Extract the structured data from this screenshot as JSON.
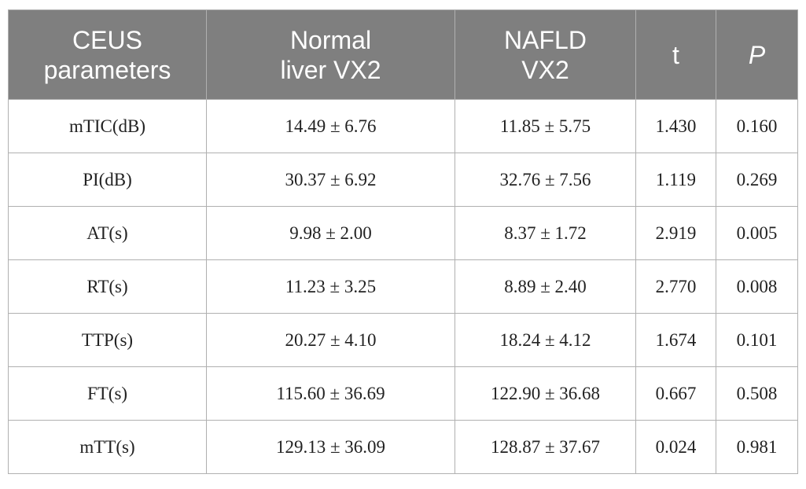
{
  "table": {
    "header": [
      [
        "CEUS",
        "parameters"
      ],
      [
        "Normal",
        "liver VX2"
      ],
      [
        "NAFLD",
        "VX2"
      ],
      [
        "t"
      ],
      [
        "P"
      ]
    ],
    "rows": [
      [
        "mTIC(dB)",
        "14.49 ± 6.76",
        "11.85 ± 5.75",
        "1.430",
        "0.160"
      ],
      [
        "PI(dB)",
        "30.37 ± 6.92",
        "32.76 ± 7.56",
        "1.119",
        "0.269"
      ],
      [
        "AT(s)",
        "9.98 ± 2.00",
        "8.37 ± 1.72",
        "2.919",
        "0.005"
      ],
      [
        "RT(s)",
        "11.23 ± 3.25",
        "8.89 ± 2.40",
        "2.770",
        "0.008"
      ],
      [
        "TTP(s)",
        "20.27 ± 4.10",
        "18.24 ± 4.12",
        "1.674",
        "0.101"
      ],
      [
        "FT(s)",
        "115.60 ± 36.69",
        "122.90 ± 36.68",
        "0.667",
        "0.508"
      ],
      [
        "mTT(s)",
        "129.13 ± 36.09",
        "128.87 ± 37.67",
        "0.024",
        "0.981"
      ]
    ]
  }
}
